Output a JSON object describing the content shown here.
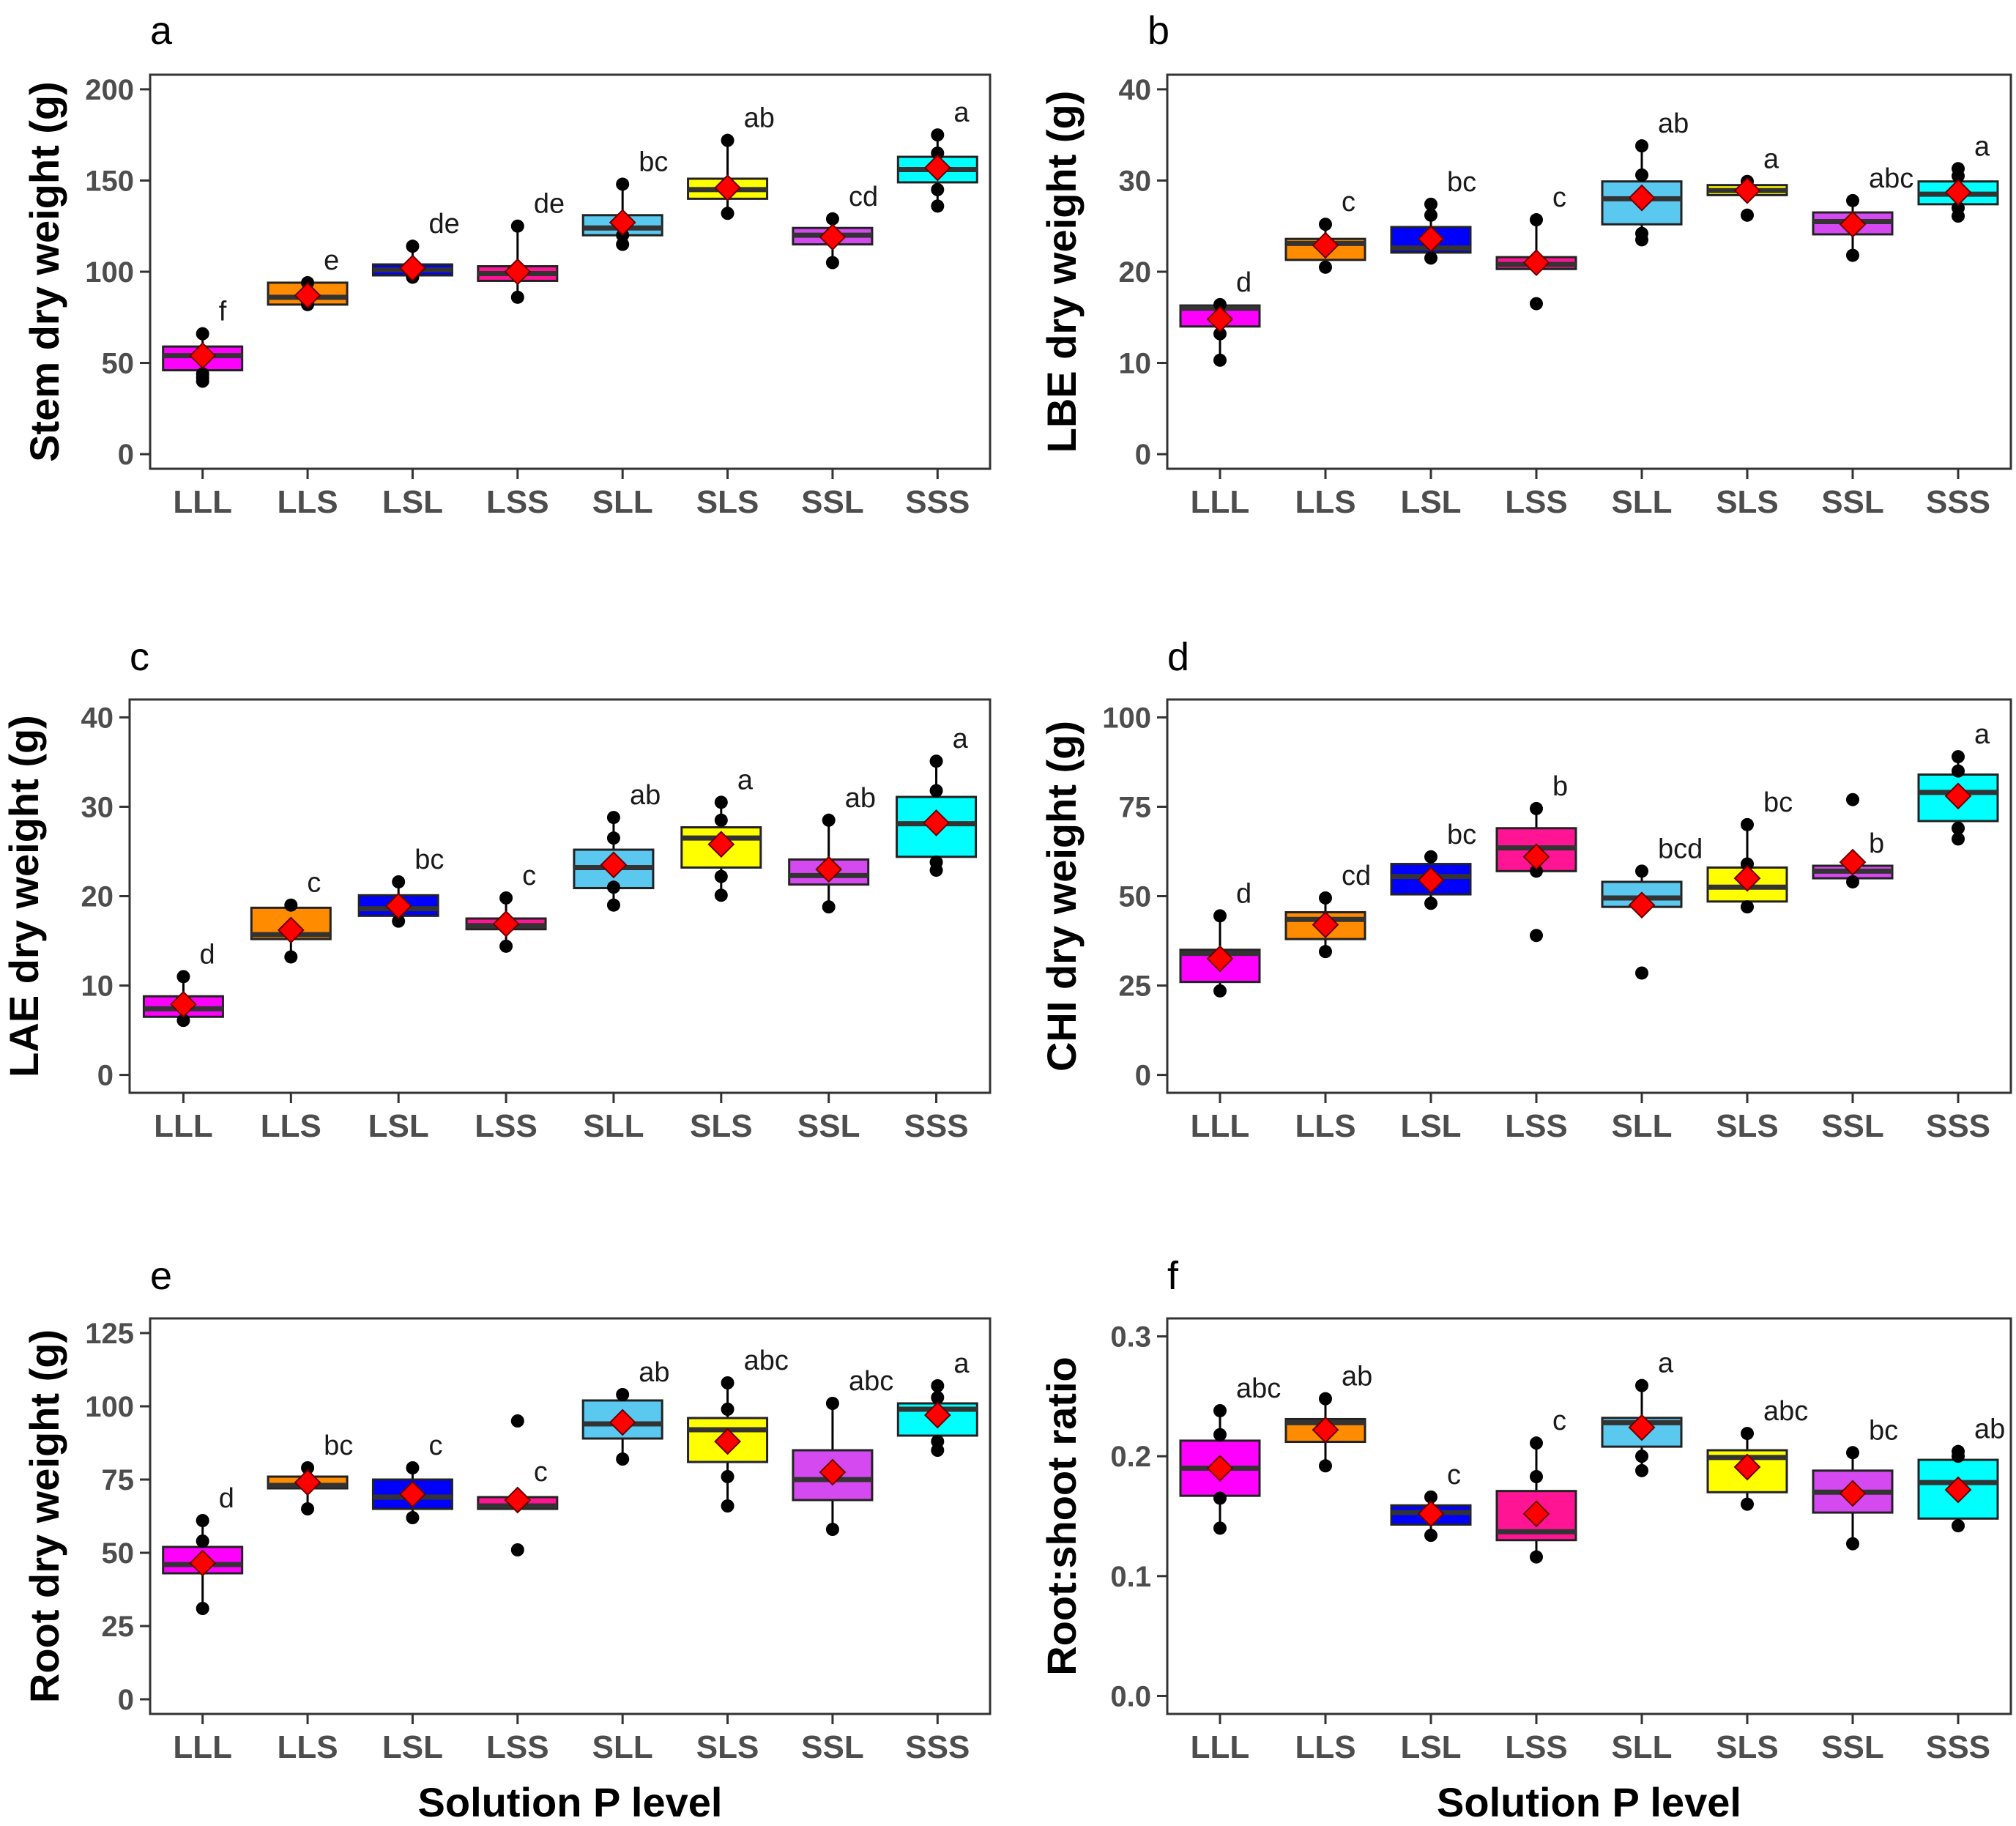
{
  "figure": {
    "xlabel": "Solution P level",
    "categories": [
      "LLL",
      "LLS",
      "LSL",
      "LSS",
      "SLL",
      "SLS",
      "SSL",
      "SSS"
    ],
    "colors": [
      "#FF00FF",
      "#FF8C00",
      "#0000FF",
      "#FF1493",
      "#5BC8F0",
      "#FFFF00",
      "#D54AF0",
      "#00FFFF"
    ],
    "mean_marker_color": "#FF0000",
    "point_color": "#000000"
  },
  "chart_data": [
    {
      "type": "box",
      "panel": "a",
      "ylabel": "Stem dry weight (g)",
      "ylim": [
        -8,
        208
      ],
      "yticks": [
        0,
        50,
        100,
        150,
        200
      ],
      "boxes": [
        {
          "q1": 46,
          "median": 54,
          "q3": 59,
          "wlo": 40,
          "whi": 66,
          "mean": 54,
          "points": [
            40,
            42,
            44,
            66
          ],
          "sig": "f"
        },
        {
          "q1": 82,
          "median": 86,
          "q3": 94,
          "wlo": 82,
          "whi": 94,
          "mean": 87,
          "points": [
            82,
            94
          ],
          "sig": "e"
        },
        {
          "q1": 98,
          "median": 101,
          "q3": 104,
          "wlo": 96,
          "whi": 114,
          "mean": 102,
          "points": [
            97,
            114
          ],
          "sig": "de"
        },
        {
          "q1": 95,
          "median": 99,
          "q3": 103,
          "wlo": 86,
          "whi": 125,
          "mean": 100,
          "points": [
            86,
            125
          ],
          "sig": "de"
        },
        {
          "q1": 120,
          "median": 124,
          "q3": 131,
          "wlo": 115,
          "whi": 148,
          "mean": 127,
          "points": [
            115,
            120,
            148
          ],
          "sig": "bc"
        },
        {
          "q1": 140,
          "median": 145,
          "q3": 151,
          "wlo": 132,
          "whi": 172,
          "mean": 146,
          "points": [
            132,
            172
          ],
          "sig": "ab"
        },
        {
          "q1": 115,
          "median": 120,
          "q3": 124,
          "wlo": 105,
          "whi": 129,
          "mean": 119,
          "points": [
            105,
            129
          ],
          "sig": "cd"
        },
        {
          "q1": 149,
          "median": 156,
          "q3": 163,
          "wlo": 136,
          "whi": 175,
          "mean": 157,
          "points": [
            136,
            145,
            165,
            175
          ],
          "sig": "a"
        }
      ]
    },
    {
      "type": "box",
      "panel": "b",
      "ylabel": "LBE dry weight (g)",
      "ylim": [
        -1.6,
        41.6
      ],
      "yticks": [
        0,
        10,
        20,
        30,
        40
      ],
      "boxes": [
        {
          "q1": 14,
          "median": 16,
          "q3": 16.3,
          "wlo": 10.3,
          "whi": 16.4,
          "mean": 14.8,
          "points": [
            10.3,
            13.2,
            16.4
          ],
          "sig": "d"
        },
        {
          "q1": 21.3,
          "median": 23.1,
          "q3": 23.6,
          "wlo": 20.5,
          "whi": 25.2,
          "mean": 22.9,
          "points": [
            20.5,
            25.2
          ],
          "sig": "c"
        },
        {
          "q1": 22.1,
          "median": 22.6,
          "q3": 24.9,
          "wlo": 21.5,
          "whi": 27.4,
          "mean": 23.6,
          "points": [
            21.5,
            26.2,
            27.4
          ],
          "sig": "bc"
        },
        {
          "q1": 20.3,
          "median": 20.8,
          "q3": 21.6,
          "wlo": 20.2,
          "whi": 25.7,
          "mean": 21,
          "points": [
            16.5,
            25.7
          ],
          "sig": "c"
        },
        {
          "q1": 25.2,
          "median": 28,
          "q3": 29.9,
          "wlo": 23.5,
          "whi": 33.8,
          "mean": 28.1,
          "points": [
            23.5,
            24.2,
            30.6,
            33.8
          ],
          "sig": "ab"
        },
        {
          "q1": 28.4,
          "median": 28.9,
          "q3": 29.5,
          "wlo": 28.3,
          "whi": 29.9,
          "mean": 28.9,
          "points": [
            26.2,
            29.9
          ],
          "sig": "a"
        },
        {
          "q1": 24.1,
          "median": 25.5,
          "q3": 26.5,
          "wlo": 21.8,
          "whi": 27.8,
          "mean": 25.2,
          "points": [
            21.8,
            27.8
          ],
          "sig": "abc"
        },
        {
          "q1": 27.4,
          "median": 28.5,
          "q3": 29.9,
          "wlo": 26.1,
          "whi": 31.3,
          "mean": 28.7,
          "points": [
            26.1,
            27,
            30.5,
            31.3
          ],
          "sig": "a"
        }
      ]
    },
    {
      "type": "box",
      "panel": "c",
      "ylabel": "LAE dry weight (g)",
      "ylim": [
        -2,
        42
      ],
      "yticks": [
        0,
        10,
        20,
        30,
        40
      ],
      "boxes": [
        {
          "q1": 6.5,
          "median": 7.4,
          "q3": 8.8,
          "wlo": 6.1,
          "whi": 11,
          "mean": 7.9,
          "points": [
            6.1,
            11
          ],
          "sig": "d"
        },
        {
          "q1": 15.2,
          "median": 15.7,
          "q3": 18.7,
          "wlo": 13.2,
          "whi": 19,
          "mean": 16.2,
          "points": [
            13.2,
            19
          ],
          "sig": "c"
        },
        {
          "q1": 17.8,
          "median": 18.6,
          "q3": 20.1,
          "wlo": 17.2,
          "whi": 21.6,
          "mean": 18.9,
          "points": [
            17.2,
            21.6
          ],
          "sig": "bc"
        },
        {
          "q1": 16.3,
          "median": 16.7,
          "q3": 17.5,
          "wlo": 14.4,
          "whi": 19.8,
          "mean": 16.9,
          "points": [
            14.4,
            19.8
          ],
          "sig": "c"
        },
        {
          "q1": 20.9,
          "median": 23.2,
          "q3": 25.2,
          "wlo": 19,
          "whi": 28.8,
          "mean": 23.5,
          "points": [
            19,
            21,
            26.5,
            28.8
          ],
          "sig": "ab"
        },
        {
          "q1": 23.2,
          "median": 26.5,
          "q3": 27.7,
          "wlo": 20.1,
          "whi": 30.5,
          "mean": 25.8,
          "points": [
            20.1,
            22.2,
            28.5,
            30.5
          ],
          "sig": "a"
        },
        {
          "q1": 21.3,
          "median": 22.3,
          "q3": 24.1,
          "wlo": 18.8,
          "whi": 28.5,
          "mean": 23,
          "points": [
            18.8,
            28.5
          ],
          "sig": "ab"
        },
        {
          "q1": 24.4,
          "median": 28.1,
          "q3": 31.1,
          "wlo": 22.9,
          "whi": 35.1,
          "mean": 28.2,
          "points": [
            22.9,
            23.8,
            31.8,
            35.1
          ],
          "sig": "a"
        }
      ]
    },
    {
      "type": "box",
      "panel": "d",
      "ylabel": "CHI dry weight (g)",
      "ylim": [
        -5,
        105
      ],
      "yticks": [
        0,
        25,
        50,
        75,
        100
      ],
      "boxes": [
        {
          "q1": 26,
          "median": 34,
          "q3": 35,
          "wlo": 23.5,
          "whi": 44.5,
          "mean": 32.5,
          "points": [
            23.5,
            44.5
          ],
          "sig": "d"
        },
        {
          "q1": 38,
          "median": 43.5,
          "q3": 45.5,
          "wlo": 34.5,
          "whi": 49.5,
          "mean": 42,
          "points": [
            34.5,
            49.5
          ],
          "sig": "cd"
        },
        {
          "q1": 50.5,
          "median": 55.5,
          "q3": 59,
          "wlo": 48,
          "whi": 61,
          "mean": 54.5,
          "points": [
            48,
            61
          ],
          "sig": "bc"
        },
        {
          "q1": 57,
          "median": 63.5,
          "q3": 69,
          "wlo": 57,
          "whi": 74.5,
          "mean": 61,
          "points": [
            39,
            57,
            74.5
          ],
          "sig": "b"
        },
        {
          "q1": 47,
          "median": 49.5,
          "q3": 54,
          "wlo": 46,
          "whi": 57,
          "mean": 47.5,
          "points": [
            28.5,
            57
          ],
          "sig": "bcd"
        },
        {
          "q1": 48.5,
          "median": 52.5,
          "q3": 58,
          "wlo": 47,
          "whi": 70,
          "mean": 55,
          "points": [
            47,
            59,
            70
          ],
          "sig": "bc"
        },
        {
          "q1": 55,
          "median": 57,
          "q3": 58.5,
          "wlo": 54,
          "whi": 58.5,
          "mean": 59.5,
          "points": [
            54,
            77
          ],
          "sig": "b"
        },
        {
          "q1": 71,
          "median": 79,
          "q3": 84,
          "wlo": 66,
          "whi": 89,
          "mean": 78,
          "points": [
            66,
            69,
            85,
            89
          ],
          "sig": "a"
        }
      ]
    },
    {
      "type": "box",
      "panel": "e",
      "ylabel": "Root dry weight (g)",
      "ylim": [
        -5,
        130
      ],
      "yticks": [
        0,
        25,
        50,
        75,
        100,
        125
      ],
      "boxes": [
        {
          "q1": 43,
          "median": 46,
          "q3": 52,
          "wlo": 31,
          "whi": 61,
          "mean": 46.5,
          "points": [
            31,
            54,
            61
          ],
          "sig": "d"
        },
        {
          "q1": 72,
          "median": 73,
          "q3": 76,
          "wlo": 65,
          "whi": 79,
          "mean": 74,
          "points": [
            65,
            79
          ],
          "sig": "bc"
        },
        {
          "q1": 65,
          "median": 69,
          "q3": 75,
          "wlo": 62,
          "whi": 79,
          "mean": 70,
          "points": [
            62,
            79
          ],
          "sig": "c"
        },
        {
          "q1": 65,
          "median": 66,
          "q3": 69,
          "wlo": 65,
          "whi": 70,
          "mean": 68,
          "points": [
            51,
            95
          ],
          "sig": "c"
        },
        {
          "q1": 89,
          "median": 94,
          "q3": 102,
          "wlo": 82,
          "whi": 104,
          "mean": 94.5,
          "points": [
            82,
            104
          ],
          "sig": "ab"
        },
        {
          "q1": 81,
          "median": 92,
          "q3": 96,
          "wlo": 66,
          "whi": 108,
          "mean": 88,
          "points": [
            66,
            76,
            99,
            108
          ],
          "sig": "abc"
        },
        {
          "q1": 68,
          "median": 75,
          "q3": 85,
          "wlo": 58,
          "whi": 101,
          "mean": 77.5,
          "points": [
            58,
            101
          ],
          "sig": "abc"
        },
        {
          "q1": 90,
          "median": 99,
          "q3": 101,
          "wlo": 85,
          "whi": 107,
          "mean": 97,
          "points": [
            85,
            88,
            103,
            107
          ],
          "sig": "a"
        }
      ]
    },
    {
      "type": "box",
      "panel": "f",
      "ylabel": "Root:shoot ratio",
      "ylim": [
        -0.015,
        0.315
      ],
      "yticks": [
        "0.0",
        "0.1",
        "0.2",
        "0.3"
      ],
      "boxes": [
        {
          "q1": 0.167,
          "median": 0.19,
          "q3": 0.213,
          "wlo": 0.14,
          "whi": 0.238,
          "mean": 0.19,
          "points": [
            0.14,
            0.165,
            0.218,
            0.238
          ],
          "sig": "abc"
        },
        {
          "q1": 0.212,
          "median": 0.228,
          "q3": 0.231,
          "wlo": 0.192,
          "whi": 0.248,
          "mean": 0.222,
          "points": [
            0.192,
            0.248
          ],
          "sig": "ab"
        },
        {
          "q1": 0.143,
          "median": 0.153,
          "q3": 0.159,
          "wlo": 0.134,
          "whi": 0.166,
          "mean": 0.152,
          "points": [
            0.134,
            0.166
          ],
          "sig": "c"
        },
        {
          "q1": 0.13,
          "median": 0.137,
          "q3": 0.171,
          "wlo": 0.116,
          "whi": 0.211,
          "mean": 0.152,
          "points": [
            0.116,
            0.183,
            0.211
          ],
          "sig": "c"
        },
        {
          "q1": 0.208,
          "median": 0.228,
          "q3": 0.232,
          "wlo": 0.188,
          "whi": 0.259,
          "mean": 0.224,
          "points": [
            0.188,
            0.2,
            0.259
          ],
          "sig": "a"
        },
        {
          "q1": 0.17,
          "median": 0.199,
          "q3": 0.205,
          "wlo": 0.16,
          "whi": 0.219,
          "mean": 0.191,
          "points": [
            0.16,
            0.219
          ],
          "sig": "abc"
        },
        {
          "q1": 0.153,
          "median": 0.17,
          "q3": 0.188,
          "wlo": 0.127,
          "whi": 0.203,
          "mean": 0.169,
          "points": [
            0.127,
            0.203
          ],
          "sig": "bc"
        },
        {
          "q1": 0.148,
          "median": 0.178,
          "q3": 0.197,
          "wlo": 0.142,
          "whi": 0.204,
          "mean": 0.172,
          "points": [
            0.142,
            0.2,
            0.204
          ],
          "sig": "ab"
        }
      ]
    }
  ]
}
